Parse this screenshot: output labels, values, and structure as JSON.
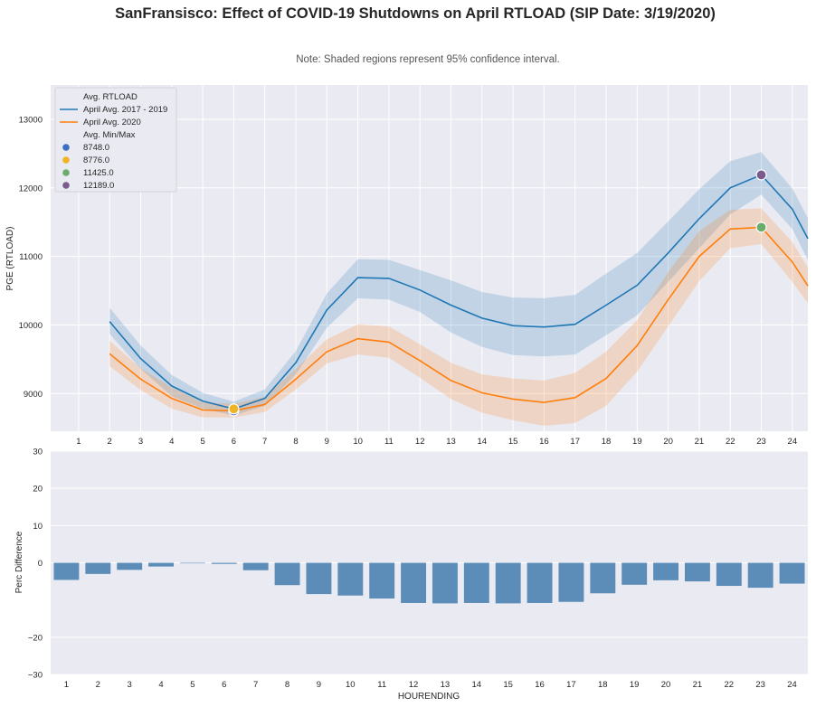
{
  "title": "SanFransisco: Effect of COVID-19 Shutdowns on April RTLOAD (SIP Date: 3/19/2020)",
  "note": "Note: Shaded regions represent 95% confidence interval.",
  "colors": {
    "background": "#eaeaf2",
    "series_hist": "#1f77b4",
    "series_2020": "#ff7f0e",
    "bar": "#5b8db8",
    "min_2020": "#3a6fc4",
    "min_hist": "#f0b323",
    "max_2020": "#6dab6d",
    "max_hist": "#7b5b8e"
  },
  "chart_data": [
    {
      "type": "line",
      "title": "",
      "xlabel": "",
      "ylabel": "PGE (RTLOAD)",
      "x_ticks": [
        "1",
        "2",
        "3",
        "4",
        "5",
        "6",
        "7",
        "8",
        "9",
        "10",
        "11",
        "12",
        "13",
        "14",
        "15",
        "16",
        "17",
        "18",
        "19",
        "20",
        "21",
        "22",
        "23",
        "24"
      ],
      "y_ticks": [
        "9000",
        "10000",
        "11000",
        "12000",
        "13000"
      ],
      "xlim": [
        0.1,
        24.5
      ],
      "ylim": [
        8450,
        13500
      ],
      "grid": true,
      "legend_position": "top-left",
      "legend": {
        "title": "Avg. RTLOAD",
        "marker_title": "Avg. Min/Max"
      },
      "series": [
        {
          "name": "April Avg. 2017 - 2019",
          "x": [
            2,
            3,
            4,
            5,
            6,
            7,
            8,
            9,
            10,
            11,
            12,
            13,
            14,
            15,
            16,
            17,
            18,
            19,
            20,
            21,
            22,
            23,
            24,
            24.5
          ],
          "values": [
            10050,
            9510,
            9110,
            8890,
            8776,
            8930,
            9450,
            10220,
            10690,
            10680,
            10510,
            10290,
            10100,
            9990,
            9970,
            10010,
            10290,
            10580,
            11050,
            11550,
            12000,
            12189,
            11690,
            11260
          ],
          "ci_low": [
            9870,
            9360,
            8960,
            8780,
            8680,
            8820,
            9280,
            9960,
            10390,
            10370,
            10190,
            9890,
            9680,
            9560,
            9540,
            9570,
            9850,
            10140,
            10630,
            11120,
            11610,
            11900,
            11400,
            10950
          ],
          "ci_high": [
            10250,
            9700,
            9270,
            9010,
            8880,
            9060,
            9620,
            10460,
            10960,
            10950,
            10800,
            10650,
            10480,
            10400,
            10390,
            10440,
            10750,
            11050,
            11510,
            11980,
            12390,
            12520,
            11990,
            11560
          ]
        },
        {
          "name": "April Avg. 2020",
          "x": [
            2,
            3,
            4,
            5,
            6,
            7,
            8,
            9,
            10,
            11,
            12,
            13,
            14,
            15,
            16,
            17,
            18,
            19,
            20,
            21,
            22,
            23,
            24,
            24.5
          ],
          "values": [
            9580,
            9210,
            8930,
            8760,
            8748,
            8840,
            9210,
            9610,
            9800,
            9750,
            9480,
            9190,
            9010,
            8920,
            8870,
            8940,
            9220,
            9700,
            10370,
            11000,
            11400,
            11425,
            10920,
            10570
          ],
          "ci_low": [
            9400,
            9050,
            8780,
            8650,
            8650,
            8730,
            9060,
            9440,
            9570,
            9520,
            9230,
            8920,
            8720,
            8610,
            8530,
            8570,
            8820,
            9320,
            9980,
            10640,
            11120,
            11180,
            10630,
            10320
          ],
          "ci_high": [
            9770,
            9370,
            9090,
            8870,
            8850,
            8950,
            9360,
            9790,
            10010,
            9980,
            9720,
            9450,
            9280,
            9220,
            9190,
            9300,
            9610,
            10070,
            10770,
            11370,
            11680,
            11700,
            11210,
            10840
          ]
        }
      ],
      "markers": [
        {
          "label": "8748.0",
          "x": 6,
          "y": 8748,
          "color": "#3a6fc4"
        },
        {
          "label": "8776.0",
          "x": 6,
          "y": 8776,
          "color": "#f0b323"
        },
        {
          "label": "11425.0",
          "x": 23,
          "y": 11425,
          "color": "#6dab6d"
        },
        {
          "label": "12189.0",
          "x": 23,
          "y": 12189,
          "color": "#7b5b8e"
        }
      ]
    },
    {
      "type": "bar",
      "xlabel": "HOURENDING",
      "ylabel": "Perc Difference",
      "categories": [
        "1",
        "2",
        "3",
        "4",
        "5",
        "6",
        "7",
        "8",
        "9",
        "10",
        "11",
        "12",
        "13",
        "14",
        "15",
        "16",
        "17",
        "18",
        "19",
        "20",
        "21",
        "22",
        "23",
        "24"
      ],
      "values": [
        -4.6,
        -3.0,
        -1.9,
        -1.0,
        -0.1,
        -0.3,
        -2.0,
        -6.0,
        -8.4,
        -8.8,
        -9.6,
        -10.8,
        -10.9,
        -10.8,
        -10.9,
        -10.8,
        -10.5,
        -8.2,
        -5.9,
        -4.7,
        -5.0,
        -6.2,
        -6.7,
        -5.6
      ],
      "y_ticks": [
        "30",
        "20",
        "10",
        "0",
        "−20",
        "−30"
      ],
      "ylim": [
        -30,
        30
      ],
      "grid": true
    }
  ]
}
